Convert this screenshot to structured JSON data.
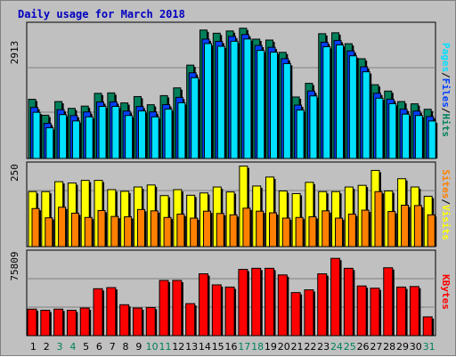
{
  "title": "Daily usage for March 2018",
  "colors": {
    "background": "#c0c0c0",
    "hits": "#00805c",
    "files": "#0040ff",
    "pages": "#00e0ff",
    "visits": "#ffff00",
    "sites": "#ff8000",
    "kbytes": "#ff0000",
    "weekend_day": "#00805c",
    "weekday": "#000000",
    "title": "#0000c0"
  },
  "legend": {
    "hits": "Hits",
    "files": "Files",
    "pages": "Pages",
    "visits": "Visits",
    "sites": "Sites",
    "kbytes": "KBytes",
    "sep": "/"
  },
  "chart_data": [
    {
      "type": "bar",
      "panel": "hits-files-pages",
      "ymax_label": "2913",
      "ylim": [
        0,
        2913
      ],
      "categories": [
        "1",
        "2",
        "3",
        "4",
        "5",
        "6",
        "7",
        "8",
        "9",
        "10",
        "11",
        "12",
        "13",
        "14",
        "15",
        "16",
        "17",
        "18",
        "19",
        "20",
        "21",
        "22",
        "23",
        "24",
        "25",
        "26",
        "27",
        "28",
        "29",
        "30",
        "31"
      ],
      "weekend": [
        false,
        false,
        true,
        true,
        false,
        false,
        false,
        false,
        false,
        true,
        true,
        false,
        false,
        false,
        false,
        false,
        true,
        true,
        false,
        false,
        false,
        false,
        false,
        true,
        true,
        false,
        false,
        false,
        false,
        false,
        true
      ],
      "series": [
        {
          "name": "Hits",
          "values": [
            1300,
            950,
            1250,
            1100,
            1150,
            1430,
            1440,
            1220,
            1360,
            1180,
            1380,
            1550,
            2050,
            2820,
            2750,
            2800,
            2860,
            2620,
            2600,
            2330,
            1350,
            1650,
            2740,
            2760,
            2520,
            2190,
            1620,
            1480,
            1250,
            1200,
            1080
          ]
        },
        {
          "name": "Files",
          "values": [
            1200,
            850,
            1150,
            1020,
            1100,
            1320,
            1320,
            1120,
            1220,
            1100,
            1260,
            1420,
            1960,
            2700,
            2650,
            2760,
            2800,
            2560,
            2520,
            2270,
            1250,
            1560,
            2630,
            2670,
            2440,
            2090,
            1510,
            1380,
            1160,
            1120,
            1000
          ]
        },
        {
          "name": "Pages",
          "values": [
            1170,
            830,
            1120,
            980,
            1070,
            1300,
            1300,
            1100,
            1200,
            1070,
            1240,
            1380,
            1930,
            2680,
            2620,
            2730,
            2780,
            2530,
            2490,
            2240,
            1220,
            1530,
            2610,
            2650,
            2410,
            2060,
            1480,
            1360,
            1130,
            1100,
            980
          ]
        }
      ]
    },
    {
      "type": "bar",
      "panel": "visits-sites",
      "ymax_label": "250",
      "ylim": [
        0,
        250
      ],
      "categories": [
        "1",
        "2",
        "3",
        "4",
        "5",
        "6",
        "7",
        "8",
        "9",
        "10",
        "11",
        "12",
        "13",
        "14",
        "15",
        "16",
        "17",
        "18",
        "19",
        "20",
        "21",
        "22",
        "23",
        "24",
        "25",
        "26",
        "27",
        "28",
        "29",
        "30",
        "31"
      ],
      "series": [
        {
          "name": "Visits",
          "values": [
            166,
            166,
            196,
            192,
            200,
            200,
            172,
            167,
            180,
            186,
            154,
            172,
            155,
            162,
            180,
            165,
            243,
            183,
            210,
            168,
            160,
            194,
            166,
            166,
            180,
            185,
            230,
            168,
            205,
            180,
            152
          ]
        },
        {
          "name": "Sites",
          "values": [
            115,
            87,
            119,
            101,
            88,
            109,
            91,
            90,
            112,
            108,
            88,
            98,
            86,
            107,
            100,
            96,
            116,
            107,
            102,
            86,
            88,
            90,
            108,
            86,
            98,
            110,
            166,
            106,
            125,
            124,
            96
          ]
        }
      ]
    },
    {
      "type": "bar",
      "panel": "kbytes",
      "ymax_label": "75809",
      "ylim": [
        0,
        75809
      ],
      "categories": [
        "1",
        "2",
        "3",
        "4",
        "5",
        "6",
        "7",
        "8",
        "9",
        "10",
        "11",
        "12",
        "13",
        "14",
        "15",
        "16",
        "17",
        "18",
        "19",
        "20",
        "21",
        "22",
        "23",
        "24",
        "25",
        "26",
        "27",
        "28",
        "29",
        "30",
        "31"
      ],
      "series": [
        {
          "name": "KBytes",
          "values": [
            24000,
            23000,
            24000,
            23000,
            25000,
            42500,
            43500,
            28000,
            25000,
            25500,
            50000,
            50000,
            29000,
            56000,
            46000,
            44000,
            60000,
            61000,
            61000,
            55000,
            39000,
            41500,
            56000,
            70000,
            61000,
            45000,
            43000,
            61500,
            44000,
            44500,
            17000
          ]
        }
      ]
    }
  ]
}
